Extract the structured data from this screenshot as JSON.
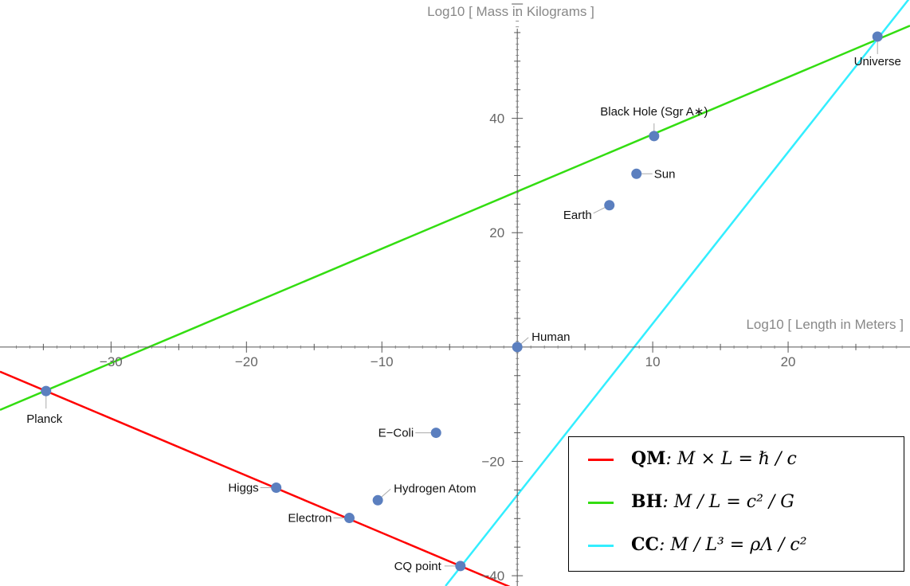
{
  "chart_data": {
    "type": "scatter",
    "xlabel": "Log10 [ Length in Meters ]",
    "ylabel": "Log10 [ Mass in Kilograms ]",
    "xlim": [
      -38.2,
      29
    ],
    "ylim": [
      -41.8,
      60.7
    ],
    "x_ticks": [
      -30,
      -20,
      -10,
      10,
      20
    ],
    "x_tick_labels": [
      "−30",
      "−20",
      "−10",
      "10",
      "20"
    ],
    "y_ticks": [
      40,
      20,
      -20,
      -40
    ],
    "y_tick_labels": [
      "40",
      "20",
      "−20",
      "−40"
    ],
    "points": [
      {
        "label": "Universe",
        "x": 26.6,
        "y": 54.3
      },
      {
        "label": "Black Hole (Sgr A∗)",
        "x": 10.1,
        "y": 36.9
      },
      {
        "label": "Sun",
        "x": 8.8,
        "y": 30.3
      },
      {
        "label": "Earth",
        "x": 6.8,
        "y": 24.8
      },
      {
        "label": "Human",
        "x": 0.0,
        "y": 0.0
      },
      {
        "label": "Planck",
        "x": -34.8,
        "y": -7.7
      },
      {
        "label": "E−Coli",
        "x": -6.0,
        "y": -15.0
      },
      {
        "label": "Higgs",
        "x": -17.8,
        "y": -24.6
      },
      {
        "label": "Hydrogen Atom",
        "x": -10.3,
        "y": -26.8
      },
      {
        "label": "Electron",
        "x": -12.4,
        "y": -29.9
      },
      {
        "label": "CQ point",
        "x": -4.2,
        "y": -38.3
      }
    ],
    "lines": [
      {
        "name": "QM",
        "color": "#ff0000",
        "slope": -1,
        "intercept": -42.5,
        "x_range": [
          -38.2,
          -0.4
        ]
      },
      {
        "name": "BH",
        "color": "#33dd11",
        "slope": 1,
        "intercept": 27.2,
        "x_range": [
          -38.2,
          29
        ]
      },
      {
        "name": "CC",
        "color": "#33eeff",
        "slope": 3,
        "intercept": -25.9,
        "x_range": [
          -5.3,
          29
        ]
      }
    ],
    "grid": false,
    "legend_position": "bottom-right"
  },
  "legend": {
    "qm_bold": "QM",
    "qm_formula": ": M × L = ℏ / c",
    "bh_bold": "BH",
    "bh_formula": ": M / L = c² / G",
    "cc_bold": "CC",
    "cc_formula": ": M / L³ = ρΛ / c²"
  }
}
